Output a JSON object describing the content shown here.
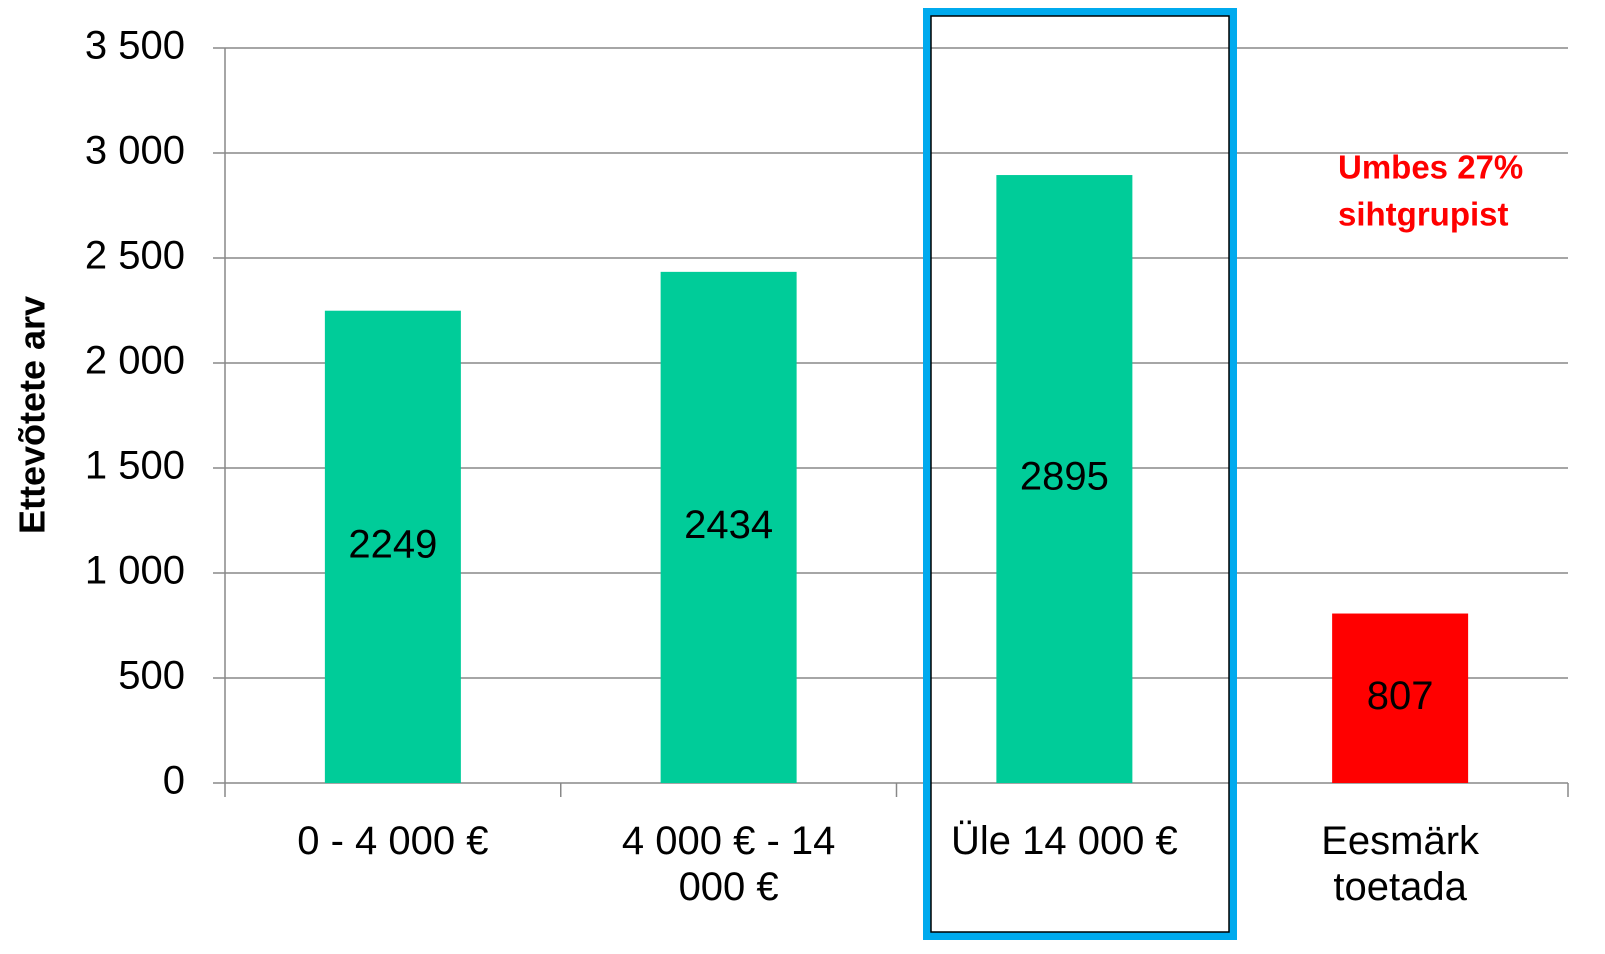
{
  "chart_data": {
    "type": "bar",
    "ylabel": "Ettevõtete arv",
    "categories": [
      "0 - 4 000 €",
      "4 000 € - 14 000 €",
      "Üle 14 000 €",
      "Eesmärk toetada"
    ],
    "values": [
      2249,
      2434,
      2895,
      807
    ],
    "colors": [
      "#00cc99",
      "#00cc99",
      "#00cc99",
      "#ff0000"
    ],
    "ylim": [
      0,
      3500
    ],
    "yticks": [
      0,
      500,
      {
        "value": 1000,
        "label": "1 000"
      },
      {
        "value": 1500,
        "label": "1 500"
      },
      {
        "value": 2000,
        "label": "2 000"
      },
      {
        "value": 2500,
        "label": "2 500"
      },
      {
        "value": 3000,
        "label": "3 000"
      },
      {
        "value": 3500,
        "label": "3 500"
      }
    ],
    "grid": true,
    "annotation": [
      "Umbes 27%",
      "sihtgrupist"
    ]
  }
}
